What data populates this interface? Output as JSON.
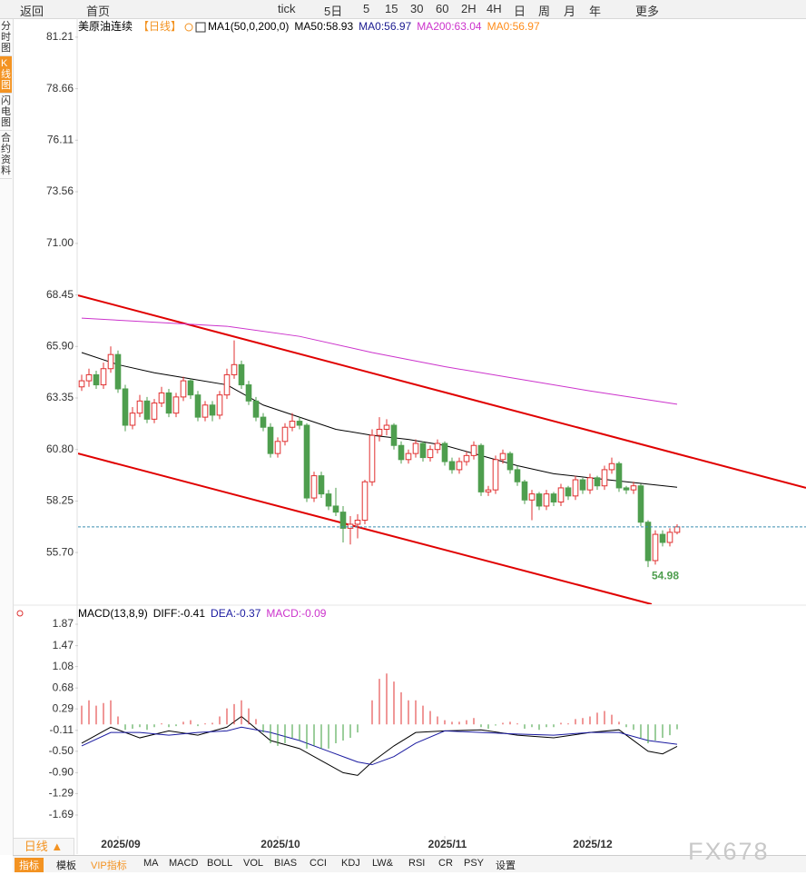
{
  "toolbar": [
    "返回",
    "首页",
    "tick",
    "5日",
    "5",
    "15",
    "30",
    "60",
    "2H",
    "4H",
    "日",
    "周",
    "月",
    "年",
    "更多"
  ],
  "sidebar": [
    "分时图",
    "K线图",
    "闪电图",
    "合约资料"
  ],
  "period_button": "日线 ▲",
  "tabs": [
    "指标",
    "模板",
    "VIP指标",
    "MA",
    "MACD",
    "BOLL",
    "VOL",
    "BIAS",
    "CCI",
    "KDJ",
    "LW&",
    "RSI",
    "CR",
    "PSY",
    "设置"
  ],
  "watermark": "FX678",
  "chart_data": [
    {
      "type": "candlestick",
      "title": "美原油连续",
      "period": "【日线】",
      "indicator": "MA1(50,0,200,0)",
      "up_color": "#e03030",
      "down_color": "#4e9e4e",
      "xlim": [
        -0.5,
        99.75
      ],
      "ylim": [
        53.14,
        82.15
      ],
      "yticks": [
        81.21,
        78.66,
        76.11,
        73.56,
        {
          "value": 71.0,
          "label": "71.00"
        },
        68.45,
        {
          "value": 65.9,
          "label": "65.90"
        },
        63.35,
        {
          "value": 60.8,
          "label": "60.80"
        },
        58.25,
        {
          "value": 55.7,
          "label": "55.70"
        }
      ],
      "xticks": [
        {
          "value": 5,
          "label": "2025/09"
        },
        {
          "value": 27,
          "label": "2025/10"
        },
        {
          "value": 50,
          "label": "2025/11"
        },
        {
          "value": 70,
          "label": "2025/12"
        }
      ],
      "candles": [
        [
          63.9,
          64.5,
          63.7,
          64.2
        ],
        [
          64.2,
          64.8,
          63.9,
          64.5
        ],
        [
          64.5,
          64.7,
          63.8,
          64.0
        ],
        [
          64.0,
          65.1,
          63.8,
          64.8
        ],
        [
          64.8,
          65.9,
          64.6,
          65.5
        ],
        [
          65.5,
          65.7,
          63.6,
          63.8
        ],
        [
          63.8,
          64.0,
          61.7,
          62.0
        ],
        [
          62.0,
          62.9,
          61.8,
          62.6
        ],
        [
          62.6,
          63.5,
          62.4,
          63.2
        ],
        [
          63.2,
          63.4,
          62.1,
          62.3
        ],
        [
          62.3,
          63.3,
          62.1,
          63.1
        ],
        [
          63.1,
          63.9,
          62.9,
          63.6
        ],
        [
          63.6,
          63.8,
          62.4,
          62.6
        ],
        [
          62.6,
          63.6,
          62.4,
          63.4
        ],
        [
          63.4,
          64.4,
          63.2,
          64.2
        ],
        [
          64.2,
          64.3,
          63.3,
          63.5
        ],
        [
          63.5,
          63.7,
          62.2,
          62.4
        ],
        [
          62.4,
          63.2,
          62.2,
          63.0
        ],
        [
          63.0,
          63.2,
          62.2,
          62.5
        ],
        [
          62.5,
          63.7,
          62.3,
          63.5
        ],
        [
          63.5,
          64.8,
          63.3,
          64.5
        ],
        [
          64.5,
          66.2,
          64.3,
          65.0
        ],
        [
          65.0,
          65.2,
          63.8,
          64.0
        ],
        [
          64.0,
          64.2,
          63.0,
          63.2
        ],
        [
          63.2,
          63.4,
          62.2,
          62.4
        ],
        [
          62.4,
          62.6,
          61.7,
          61.9
        ],
        [
          61.9,
          62.1,
          60.4,
          60.6
        ],
        [
          60.6,
          61.4,
          60.4,
          61.2
        ],
        [
          61.2,
          62.1,
          61.0,
          61.9
        ],
        [
          61.9,
          62.6,
          61.7,
          62.2
        ],
        [
          62.2,
          62.4,
          61.8,
          62.0
        ],
        [
          62.0,
          62.1,
          58.2,
          58.4
        ],
        [
          58.4,
          59.7,
          58.2,
          59.5
        ],
        [
          59.5,
          59.7,
          58.4,
          58.6
        ],
        [
          58.6,
          58.8,
          57.8,
          58.0
        ],
        [
          58.0,
          58.9,
          57.5,
          57.7
        ],
        [
          57.7,
          58.0,
          56.2,
          56.9
        ],
        [
          56.9,
          57.5,
          56.1,
          57.1
        ],
        [
          57.1,
          57.6,
          56.4,
          57.3
        ],
        [
          57.3,
          59.3,
          57.1,
          59.2
        ],
        [
          59.2,
          61.8,
          59.0,
          61.5
        ],
        [
          61.5,
          62.4,
          61.2,
          61.8
        ],
        [
          61.8,
          62.3,
          61.5,
          62.0
        ],
        [
          62.0,
          62.1,
          60.8,
          61.0
        ],
        [
          61.0,
          61.2,
          60.1,
          60.3
        ],
        [
          60.3,
          60.8,
          60.1,
          60.6
        ],
        [
          60.6,
          61.3,
          60.4,
          61.1
        ],
        [
          61.1,
          61.2,
          60.2,
          60.4
        ],
        [
          60.4,
          61.0,
          60.2,
          60.8
        ],
        [
          60.8,
          61.3,
          60.6,
          61.1
        ],
        [
          61.1,
          61.2,
          60.0,
          60.2
        ],
        [
          60.2,
          60.4,
          59.6,
          59.8
        ],
        [
          59.8,
          60.4,
          59.6,
          60.2
        ],
        [
          60.2,
          60.7,
          60.0,
          60.5
        ],
        [
          60.5,
          61.2,
          60.3,
          61.0
        ],
        [
          61.0,
          61.1,
          58.5,
          58.7
        ],
        [
          58.7,
          59.0,
          58.5,
          58.8
        ],
        [
          58.8,
          60.5,
          58.6,
          60.3
        ],
        [
          60.3,
          60.8,
          60.1,
          60.6
        ],
        [
          60.6,
          60.7,
          59.6,
          59.8
        ],
        [
          59.8,
          60.0,
          59.0,
          59.2
        ],
        [
          59.2,
          59.3,
          58.1,
          58.3
        ],
        [
          58.3,
          58.8,
          57.3,
          58.6
        ],
        [
          58.6,
          58.7,
          57.8,
          58.0
        ],
        [
          58.0,
          58.8,
          57.8,
          58.6
        ],
        [
          58.6,
          58.7,
          58.0,
          58.2
        ],
        [
          58.2,
          59.1,
          58.0,
          58.9
        ],
        [
          58.9,
          59.0,
          58.3,
          58.5
        ],
        [
          58.5,
          59.5,
          58.3,
          59.3
        ],
        [
          59.3,
          59.4,
          58.6,
          58.8
        ],
        [
          58.8,
          59.6,
          58.6,
          59.4
        ],
        [
          59.4,
          59.5,
          58.8,
          59.0
        ],
        [
          59.0,
          60.0,
          58.8,
          59.8
        ],
        [
          59.8,
          60.4,
          59.6,
          60.1
        ],
        [
          60.1,
          60.2,
          58.7,
          58.9
        ],
        [
          58.9,
          59.0,
          58.6,
          58.8
        ],
        [
          58.8,
          59.2,
          58.6,
          59.0
        ],
        [
          59.0,
          59.1,
          57.0,
          57.2
        ],
        [
          57.2,
          57.3,
          54.98,
          55.3
        ],
        [
          55.3,
          56.8,
          55.1,
          56.6
        ],
        [
          56.6,
          56.8,
          56.0,
          56.2
        ],
        [
          56.2,
          56.9,
          56.0,
          56.7
        ],
        [
          56.7,
          57.1,
          56.6,
          56.97
        ]
      ],
      "low_label": 54.98,
      "last_price_color": "#3a8fb0",
      "series": [
        {
          "name": "MA50:58.93",
          "color": "#000000",
          "x": [
            0,
            5,
            10,
            15,
            20,
            25,
            30,
            35,
            40,
            45,
            50,
            55,
            60,
            65,
            70,
            75,
            82
          ],
          "values": [
            65.6,
            65.0,
            64.6,
            64.3,
            64.0,
            63.0,
            62.4,
            61.8,
            61.5,
            61.3,
            61.0,
            60.5,
            60.0,
            59.6,
            59.4,
            59.2,
            58.93
          ]
        },
        {
          "name": "MA0:56.97",
          "color": "#1a1a90"
        },
        {
          "name": "MA200:63.04",
          "color": "#cc33cc",
          "x": [
            0,
            10,
            20,
            30,
            40,
            50,
            60,
            70,
            82
          ],
          "values": [
            67.3,
            67.1,
            66.9,
            66.4,
            65.6,
            64.9,
            64.3,
            63.7,
            63.04
          ]
        },
        {
          "name": "MA0:56.97",
          "color": "#ff8c1a"
        }
      ],
      "trendlines": [
        {
          "color": "#e00000",
          "x": [
            -0.5,
            99.75
          ],
          "y": [
            68.43,
            58.9
          ]
        },
        {
          "color": "#e00000",
          "x": [
            -0.5,
            78.5
          ],
          "y": [
            60.6,
            53.14
          ]
        }
      ]
    },
    {
      "type": "macd",
      "title": "MACD(13,8,9)",
      "up_color": "#e03030",
      "down_color": "#3a9e3a",
      "xlim": [
        -0.5,
        99.75
      ],
      "ylim": [
        -2.08,
        2.158
      ],
      "yticks": [
        1.87,
        1.47,
        1.08,
        0.68,
        0.29,
        -0.11,
        {
          "value": -0.5,
          "label": "-0.50"
        },
        {
          "value": -0.9,
          "label": "-0.90"
        },
        -1.29,
        -1.69
      ],
      "series": [
        {
          "name": "DIFF:-0.41",
          "color": "#000000",
          "x": [
            0,
            4,
            8,
            12,
            16,
            20,
            22,
            26,
            30,
            34,
            36,
            38,
            40,
            43,
            46,
            50,
            55,
            60,
            65,
            70,
            74,
            78,
            80,
            82
          ],
          "values": [
            -0.35,
            -0.05,
            -0.25,
            -0.12,
            -0.2,
            -0.05,
            0.15,
            -0.3,
            -0.45,
            -0.75,
            -0.9,
            -0.95,
            -0.7,
            -0.4,
            -0.15,
            -0.12,
            -0.1,
            -0.2,
            -0.25,
            -0.15,
            -0.1,
            -0.5,
            -0.55,
            -0.41
          ]
        },
        {
          "name": "DEA:-0.37",
          "color": "#1a1aa0",
          "x": [
            0,
            4,
            8,
            12,
            16,
            20,
            22,
            26,
            30,
            34,
            38,
            40,
            43,
            46,
            50,
            55,
            60,
            65,
            70,
            74,
            78,
            82
          ],
          "values": [
            -0.4,
            -0.15,
            -0.15,
            -0.2,
            -0.15,
            -0.12,
            -0.05,
            -0.15,
            -0.3,
            -0.5,
            -0.7,
            -0.75,
            -0.6,
            -0.35,
            -0.12,
            -0.15,
            -0.18,
            -0.2,
            -0.15,
            -0.15,
            -0.3,
            -0.37
          ]
        },
        {
          "name": "MACD:-0.09",
          "color": "#cc33cc",
          "values": [
            0.35,
            0.45,
            0.35,
            0.4,
            0.45,
            0.15,
            -0.1,
            -0.08,
            -0.05,
            -0.1,
            -0.05,
            0.02,
            -0.05,
            -0.03,
            0.05,
            0.08,
            -0.03,
            0.02,
            0.03,
            0.15,
            0.3,
            0.38,
            0.45,
            0.3,
            0.1,
            -0.15,
            -0.35,
            -0.4,
            -0.35,
            -0.25,
            -0.3,
            -0.45,
            -0.4,
            -0.45,
            -0.45,
            -0.35,
            -0.3,
            -0.25,
            -0.15,
            0.0,
            0.45,
            0.85,
            0.95,
            0.8,
            0.6,
            0.45,
            0.45,
            0.35,
            0.25,
            0.15,
            0.08,
            0.05,
            0.05,
            0.08,
            0.12,
            -0.05,
            -0.08,
            -0.02,
            0.03,
            0.05,
            0.02,
            -0.08,
            -0.05,
            -0.1,
            -0.05,
            -0.05,
            0.03,
            0.02,
            0.1,
            0.12,
            0.15,
            0.22,
            0.25,
            0.18,
            0.05,
            -0.05,
            -0.1,
            -0.25,
            -0.35,
            -0.3,
            -0.25,
            -0.2,
            -0.09
          ]
        }
      ]
    }
  ]
}
